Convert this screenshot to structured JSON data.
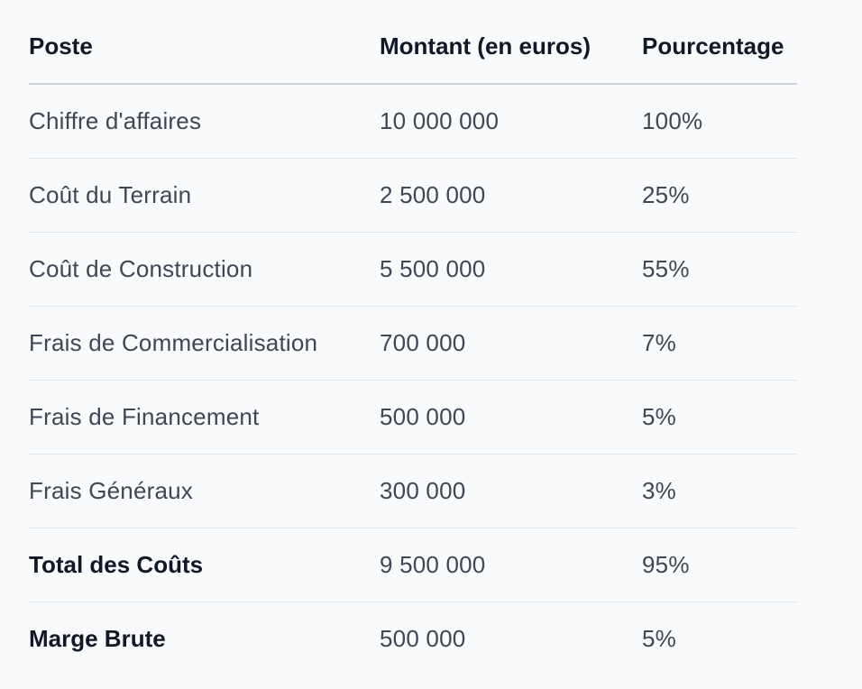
{
  "table": {
    "headers": {
      "poste": "Poste",
      "montant": "Montant (en euros)",
      "pourcentage": "Pourcentage"
    },
    "rows": [
      {
        "poste": "Chiffre d'affaires",
        "montant": "10 000 000",
        "pourcentage": "100%"
      },
      {
        "poste": "Coût du Terrain",
        "montant": "2 500 000",
        "pourcentage": "25%"
      },
      {
        "poste": "Coût de Construction",
        "montant": "5 500 000",
        "pourcentage": "55%"
      },
      {
        "poste": "Frais de Commercialisation",
        "montant": "700 000",
        "pourcentage": "7%"
      },
      {
        "poste": "Frais de Financement",
        "montant": "500 000",
        "pourcentage": "5%"
      },
      {
        "poste": "Frais Généraux",
        "montant": "300 000",
        "pourcentage": "3%"
      },
      {
        "poste": "Total des Coûts",
        "montant": "9 500 000",
        "pourcentage": "95%"
      },
      {
        "poste": "Marge Brute",
        "montant": "500 000",
        "pourcentage": "5%"
      }
    ]
  }
}
